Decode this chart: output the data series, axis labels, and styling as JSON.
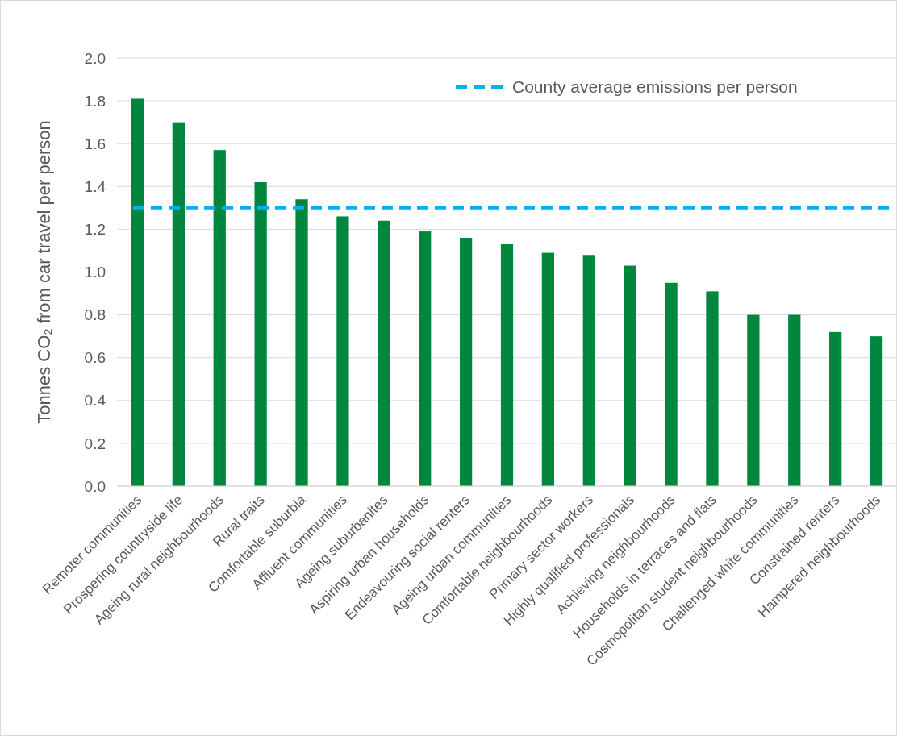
{
  "chart_data": {
    "type": "bar",
    "ylabel": "Tonnes CO₂ from car travel per person",
    "categories": [
      "Remoter communities",
      "Prospering countryside life",
      "Ageing rural neighbourhoods",
      "Rural traits",
      "Comfortable suburbia",
      "Affluent communities",
      "Ageing suburbanites",
      "Aspiring urban households",
      "Endeavouring social renters",
      "Ageing urban communities",
      "Comfortable neighbourhoods",
      "Primary sector workers",
      "Highly qualified professionals",
      "Achieving neighbourhoods",
      "Households in terraces and flats",
      "Cosmopolitan student neighbourhoods",
      "Challenged white communities",
      "Constrained renters",
      "Hampered neighbourhoods"
    ],
    "values": [
      1.81,
      1.7,
      1.57,
      1.42,
      1.34,
      1.26,
      1.24,
      1.19,
      1.16,
      1.13,
      1.09,
      1.08,
      1.03,
      0.95,
      0.91,
      0.8,
      0.8,
      0.72,
      0.7
    ],
    "color": "#00873e",
    "ylim": [
      0,
      2
    ],
    "yticks": [
      {
        "value": 0,
        "label": "0.0"
      },
      {
        "value": 0.2,
        "label": "0.2"
      },
      {
        "value": 0.4,
        "label": "0.4"
      },
      {
        "value": 0.6,
        "label": "0.6"
      },
      {
        "value": 0.8,
        "label": "0.8"
      },
      {
        "value": 1,
        "label": "1.0"
      },
      {
        "value": 1.2,
        "label": "1.2"
      },
      {
        "value": 1.4,
        "label": "1.4"
      },
      {
        "value": 1.6,
        "label": "1.6"
      },
      {
        "value": 1.8,
        "label": "1.8"
      },
      {
        "value": 2,
        "label": "2.0"
      }
    ],
    "grid": "y",
    "ref_lines": [
      {
        "axis": "y",
        "value": 1.3,
        "label": "County average emissions per person",
        "color": "#00b0f0",
        "line_style": "dashed"
      }
    ],
    "legend": "top right"
  }
}
